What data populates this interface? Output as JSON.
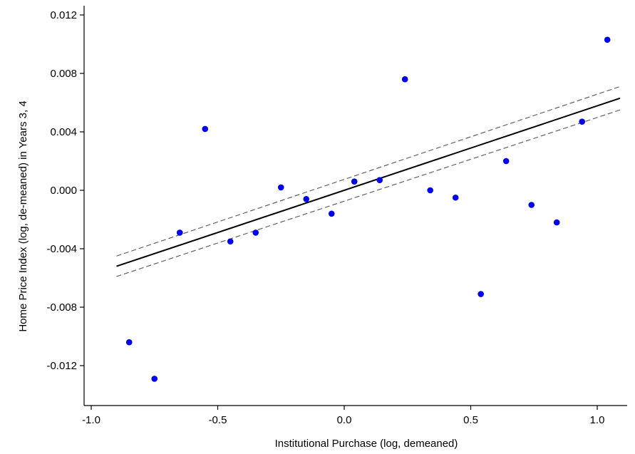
{
  "chart_data": {
    "type": "scatter",
    "title": "",
    "xlabel": "Institutional Purchase (log, demeaned)",
    "ylabel": "Home Price Index (log, de-meaned) in Years 3, 4",
    "xlim": [
      -1.0,
      1.1
    ],
    "ylim": [
      -0.0145,
      0.0128
    ],
    "x_ticks": [
      -1.0,
      -0.5,
      0.0,
      0.5,
      1.0
    ],
    "x_tick_labels": [
      "-1.0",
      "-0.5",
      "0.0",
      "0.5",
      "1.0"
    ],
    "y_ticks": [
      -0.012,
      -0.008,
      -0.004,
      0.0,
      0.004,
      0.008,
      0.012
    ],
    "y_tick_labels": [
      "-0.012",
      "-0.008",
      "-0.004",
      "0.000",
      "0.004",
      "0.008",
      "0.012"
    ],
    "grid": false,
    "points": [
      {
        "x": -0.85,
        "y": -0.0104
      },
      {
        "x": -0.75,
        "y": -0.0129
      },
      {
        "x": -0.65,
        "y": -0.0029
      },
      {
        "x": -0.55,
        "y": 0.0042
      },
      {
        "x": -0.45,
        "y": -0.0035
      },
      {
        "x": -0.35,
        "y": -0.0029
      },
      {
        "x": -0.25,
        "y": 0.0002
      },
      {
        "x": -0.15,
        "y": -0.0006
      },
      {
        "x": -0.05,
        "y": -0.0016
      },
      {
        "x": 0.04,
        "y": 0.0006
      },
      {
        "x": 0.14,
        "y": 0.0007
      },
      {
        "x": 0.24,
        "y": 0.0076
      },
      {
        "x": 0.34,
        "y": 0.0
      },
      {
        "x": 0.44,
        "y": -0.0005
      },
      {
        "x": 0.54,
        "y": -0.0071
      },
      {
        "x": 0.64,
        "y": 0.002
      },
      {
        "x": 0.74,
        "y": -0.001
      },
      {
        "x": 0.84,
        "y": -0.0022
      },
      {
        "x": 0.94,
        "y": 0.0047
      },
      {
        "x": 1.04,
        "y": 0.0103
      }
    ],
    "fit_line": {
      "x": [
        -0.9,
        1.09
      ],
      "y": [
        -0.0052,
        0.0063
      ]
    },
    "ci_upper": {
      "x": [
        -0.9,
        1.09
      ],
      "y": [
        -0.0045,
        0.0071
      ]
    },
    "ci_lower": {
      "x": [
        -0.9,
        1.09
      ],
      "y": [
        -0.0059,
        0.0055
      ]
    },
    "colors": {
      "points": "#0000ee",
      "fit": "#000000",
      "ci": "#555555",
      "axis": "#000000"
    }
  }
}
